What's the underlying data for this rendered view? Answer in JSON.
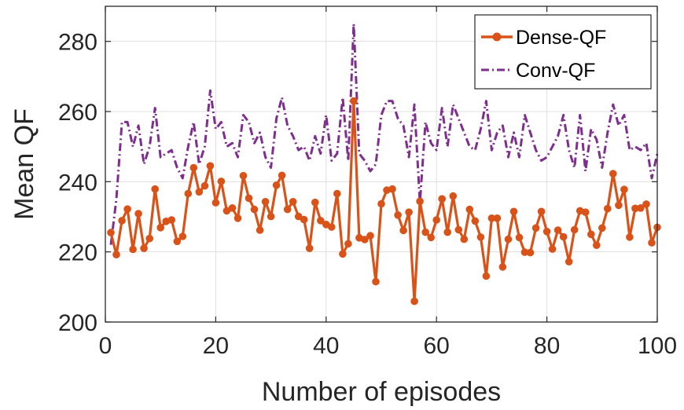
{
  "colors": {
    "dense": "#D95319",
    "conv": "#7E2F8E",
    "grid": "#DFDFDF",
    "axis": "#262626"
  },
  "chart_data": {
    "type": "line",
    "xlabel": "Number of episodes",
    "ylabel": "Mean QF",
    "xlim": [
      0,
      100
    ],
    "ylim": [
      200,
      290
    ],
    "xticks": [
      0,
      20,
      40,
      60,
      80,
      100
    ],
    "yticks": [
      200,
      220,
      240,
      260,
      280
    ],
    "grid": true,
    "legend_position": "top-right",
    "x": [
      1,
      2,
      3,
      4,
      5,
      6,
      7,
      8,
      9,
      10,
      11,
      12,
      13,
      14,
      15,
      16,
      17,
      18,
      19,
      20,
      21,
      22,
      23,
      24,
      25,
      26,
      27,
      28,
      29,
      30,
      31,
      32,
      33,
      34,
      35,
      36,
      37,
      38,
      39,
      40,
      41,
      42,
      43,
      44,
      45,
      46,
      47,
      48,
      49,
      50,
      51,
      52,
      53,
      54,
      55,
      56,
      57,
      58,
      59,
      60,
      61,
      62,
      63,
      64,
      65,
      66,
      67,
      68,
      69,
      70,
      71,
      72,
      73,
      74,
      75,
      76,
      77,
      78,
      79,
      80,
      81,
      82,
      83,
      84,
      85,
      86,
      87,
      88,
      89,
      90,
      91,
      92,
      93,
      94,
      95,
      96,
      97,
      98,
      99,
      100
    ],
    "series": [
      {
        "name": "Dense-QF",
        "style": "solid-circle-markers",
        "values": [
          225.5,
          219.2,
          228.9,
          232.2,
          220.7,
          230.9,
          221.0,
          223.8,
          237.9,
          226.9,
          228.7,
          229.1,
          223.0,
          224.4,
          236.6,
          244.0,
          237.1,
          238.8,
          244.5,
          234.0,
          240.1,
          231.7,
          232.5,
          229.6,
          241.7,
          235.3,
          232.1,
          226.2,
          234.3,
          230.1,
          239.0,
          241.8,
          232.1,
          234.3,
          230.1,
          229.2,
          221.0,
          234.1,
          228.9,
          227.8,
          227.1,
          236.6,
          219.4,
          222.3,
          263.0,
          224.0,
          223.5,
          224.6,
          211.5,
          233.7,
          237.6,
          237.9,
          230.5,
          226.1,
          231.3,
          205.9,
          234.4,
          225.6,
          224.1,
          229.1,
          235.1,
          225.6,
          235.9,
          226.3,
          223.6,
          232.1,
          228.8,
          224.2,
          213.1,
          229.6,
          229.6,
          215.7,
          223.6,
          231.5,
          224.1,
          219.9,
          219.8,
          226.8,
          231.5,
          225.8,
          220.8,
          226.2,
          224.3,
          217.2,
          226.3,
          231.7,
          231.3,
          225.0,
          221.9,
          226.8,
          232.3,
          242.3,
          233.3,
          237.8,
          224.2,
          232.4,
          232.5,
          233.6,
          222.6,
          227.0
        ]
      },
      {
        "name": "Conv-QF",
        "style": "dash-dot",
        "values": [
          222,
          235,
          257,
          257,
          250,
          256,
          245,
          250,
          261,
          247,
          248,
          249,
          244,
          241,
          250,
          257,
          245,
          250,
          266,
          255,
          257,
          250,
          251,
          247,
          259,
          257,
          251,
          254,
          247,
          244,
          258,
          264,
          256,
          253,
          249,
          250,
          246,
          253,
          248,
          259,
          246,
          248,
          264,
          246,
          285,
          248,
          246,
          243,
          245,
          259,
          263,
          263,
          258,
          256,
          247,
          262,
          234,
          257,
          251,
          249,
          261,
          250,
          262,
          258,
          254,
          250,
          249,
          255,
          263,
          249,
          254,
          256,
          247,
          254,
          247,
          259,
          254,
          249,
          246,
          247,
          250,
          253,
          259,
          249,
          244,
          259,
          243,
          255,
          252,
          244,
          254,
          262,
          256,
          259,
          249,
          250,
          249,
          251,
          241,
          248
        ]
      }
    ]
  }
}
